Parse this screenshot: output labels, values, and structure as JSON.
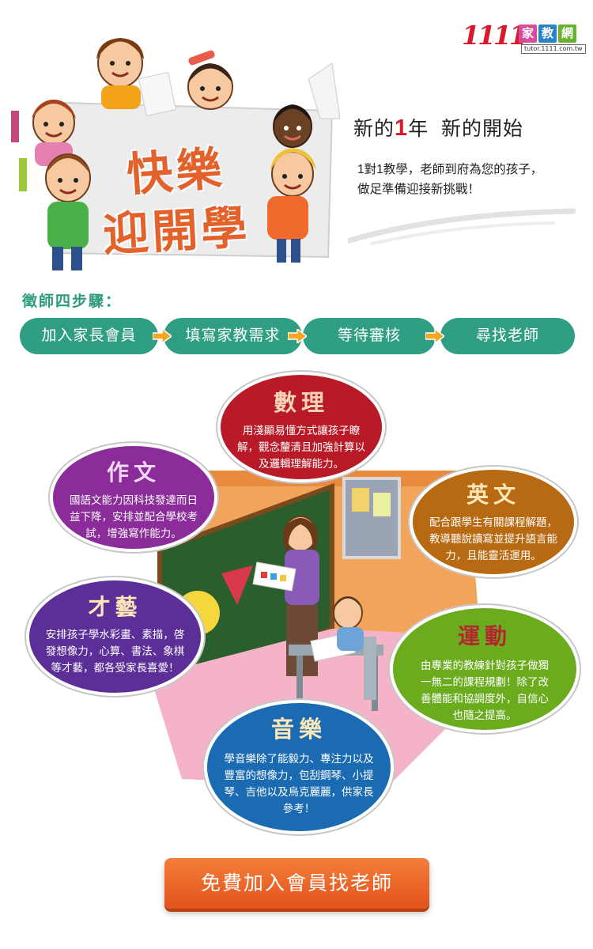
{
  "logo": {
    "numbers": "1111",
    "box_chars": [
      "家",
      "教",
      "網"
    ],
    "url": "tutor.1111.com.tw",
    "colors": [
      "#d7192b",
      "#d94a9b",
      "#2b83c6",
      "#68b230"
    ]
  },
  "hero": {
    "banner_line1": "快樂",
    "banner_line2": "迎開學",
    "headline_pre": "新的",
    "headline_num": "1",
    "headline_post": "年  新的開始",
    "sub_line1": "1對1教學，老師到府為您的孩子，",
    "sub_line2": "做足準備迎接新挑戰！"
  },
  "steps": {
    "label": "徵師四步驟：",
    "items": [
      "加入家長會員",
      "填寫家教需求",
      "等待審核",
      "尋找老師"
    ],
    "accent": "#2f9e82",
    "arrow_color": "#f5a623"
  },
  "subjects": {
    "math": {
      "title": "數理",
      "text": "用淺顯易懂方式讓孩子瞭解，觀念釐清且加強計算以及邏輯理解能力。",
      "color": "#b81b27"
    },
    "composition": {
      "title": "作文",
      "text": "國語文能力因科技發達而日益下降，安排並配合學校考試，增強寫作能力。",
      "color": "#8b2c9a"
    },
    "english": {
      "title": "英文",
      "text": "配合跟學生有關課程解題，教導聽說讀寫並提升語言能力，且能靈活運用。",
      "color": "#b86a12"
    },
    "arts": {
      "title": "才藝",
      "text": "安排孩子學水彩畫、素描，啓發想像力，心算、書法、象棋等才藝，都各受家長喜愛！",
      "color": "#5c2f98"
    },
    "sports": {
      "title": "運動",
      "text": "由專業的教練針對孩子做獨一無二的課程規劃！除了改善體能和協調度外，自信心也隨之提高。",
      "color": "#6bac1f"
    },
    "music": {
      "title": "音樂",
      "text": "學音樂除了能毅力、專注力以及豐富的想像力，包刮鋼琴、小提琴、吉他以及烏克麗麗，供家長參考！",
      "color": "#1b6bb3"
    }
  },
  "cta": {
    "label": "免費加入會員找老師",
    "color": "#e2531c"
  }
}
